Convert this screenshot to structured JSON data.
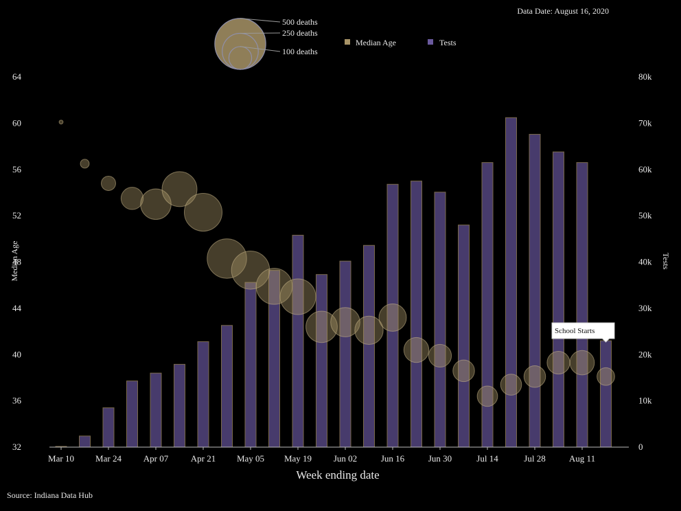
{
  "header": {
    "data_date": "Data Date: August 16, 2020"
  },
  "footer": {
    "source": "Source: Indiana Data Hub"
  },
  "legend": {
    "median_age_label": "Median Age",
    "tests_label": "Tests",
    "size_labels": [
      "500 deaths",
      "250 deaths",
      "100 deaths"
    ],
    "size_values": [
      500,
      250,
      100
    ]
  },
  "annotation": {
    "text": "School Starts",
    "week_index": 23
  },
  "chart_data": {
    "type": "bar",
    "xlabel": "Week ending date",
    "y_left_label": "Median Age",
    "y_right_label": "Tests",
    "y_left_lim": [
      32,
      64
    ],
    "y_left_ticks": [
      "32",
      "36",
      "40",
      "44",
      "48",
      "52",
      "56",
      "60",
      "64"
    ],
    "y_right_lim": [
      0,
      80000
    ],
    "y_right_ticks": [
      "0",
      "10k",
      "20k",
      "30k",
      "40k",
      "50k",
      "60k",
      "70k",
      "80k"
    ],
    "x_tick_labels": [
      "Mar 10",
      "Mar 24",
      "Apr 07",
      "Apr 21",
      "May 05",
      "May 19",
      "Jun 02",
      "Jun 16",
      "Jun 30",
      "Jul 14",
      "Jul 28",
      "Aug 11"
    ],
    "x_tick_every": 2,
    "colors": {
      "tests": "#5b4b8a",
      "median_age": "#a89467",
      "bar_edge": "#7a6a4a"
    },
    "series": [
      {
        "name": "Tests",
        "values": [
          150,
          2400,
          8500,
          14300,
          16000,
          17900,
          22800,
          26300,
          35600,
          38200,
          45800,
          37300,
          40200,
          43600,
          56800,
          57500,
          55100,
          48000,
          61500,
          71200,
          67600,
          63800,
          61500,
          23000
        ]
      },
      {
        "name": "Median Age",
        "values": [
          60.1,
          56.5,
          54.8,
          53.5,
          53.0,
          54.3,
          52.3,
          48.3,
          47.3,
          45.9,
          45.0,
          42.4,
          42.8,
          42.1,
          43.2,
          40.4,
          39.9,
          38.6,
          36.4,
          37.4,
          38.1,
          39.3,
          39.3,
          38.1
        ],
        "deaths": [
          3,
          15,
          40,
          95,
          180,
          235,
          275,
          300,
          280,
          250,
          245,
          190,
          165,
          155,
          145,
          120,
          100,
          90,
          80,
          85,
          90,
          100,
          115,
          60
        ]
      }
    ]
  }
}
